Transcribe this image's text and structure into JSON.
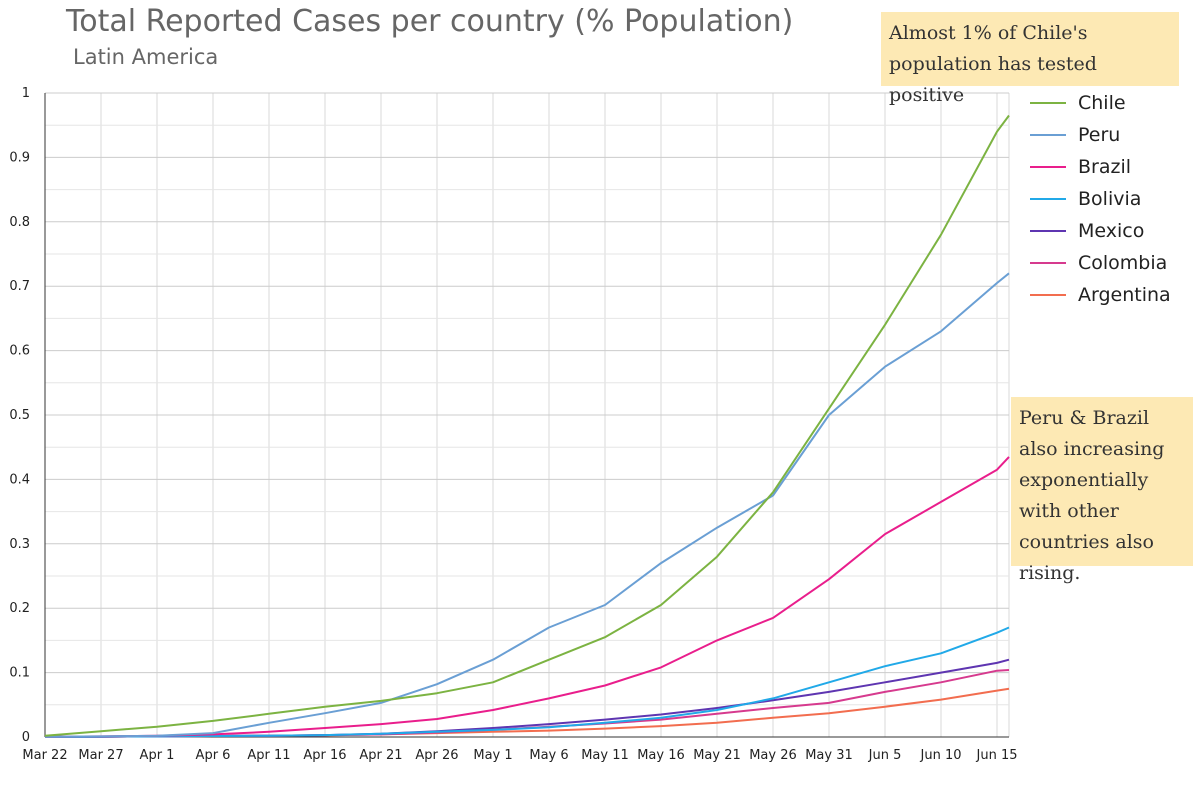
{
  "chart_data": {
    "type": "line",
    "title": "Total Reported Cases per country (% Population)",
    "subtitle": "Latin America",
    "xlabel": "",
    "ylabel": "",
    "ylim": [
      0,
      1
    ],
    "yticks": [
      "0",
      "0.1",
      "0.2",
      "0.3",
      "0.4",
      "0.5",
      "0.6",
      "0.7",
      "0.8",
      "0.9",
      "1"
    ],
    "xticks": [
      "Mar 22",
      "Mar 27",
      "Apr 1",
      "Apr 6",
      "Apr 11",
      "Apr 16",
      "Apr 21",
      "Apr 26",
      "May 1",
      "May 6",
      "May 11",
      "May 16",
      "May 21",
      "May 26",
      "May 31",
      "Jun 5",
      "Jun 10",
      "Jun 15"
    ],
    "grid": true,
    "legend_position": "right",
    "x": [
      "Mar 22",
      "Mar 27",
      "Apr 1",
      "Apr 6",
      "Apr 11",
      "Apr 16",
      "Apr 21",
      "Apr 26",
      "May 1",
      "May 6",
      "May 11",
      "May 16",
      "May 21",
      "May 26",
      "May 31",
      "Jun 5",
      "Jun 10",
      "Jun 15",
      "Jun 16"
    ],
    "series": [
      {
        "name": "Chile",
        "color": "#7cb342",
        "values": [
          0.002,
          0.009,
          0.016,
          0.025,
          0.036,
          0.047,
          0.056,
          0.068,
          0.085,
          0.12,
          0.155,
          0.205,
          0.28,
          0.38,
          0.51,
          0.64,
          0.78,
          0.94,
          0.965
        ]
      },
      {
        "name": "Peru",
        "color": "#6a9fd4",
        "values": [
          0.0005,
          0.001,
          0.002,
          0.006,
          0.022,
          0.037,
          0.053,
          0.082,
          0.12,
          0.17,
          0.205,
          0.27,
          0.325,
          0.375,
          0.5,
          0.575,
          0.63,
          0.705,
          0.72
        ]
      },
      {
        "name": "Brazil",
        "color": "#e91e8c",
        "values": [
          0.0005,
          0.001,
          0.002,
          0.004,
          0.008,
          0.014,
          0.02,
          0.028,
          0.042,
          0.06,
          0.08,
          0.108,
          0.15,
          0.185,
          0.245,
          0.315,
          0.365,
          0.415,
          0.435
        ]
      },
      {
        "name": "Bolivia",
        "color": "#21a9e8",
        "values": [
          0.0002,
          0.0005,
          0.001,
          0.0015,
          0.002,
          0.003,
          0.005,
          0.008,
          0.011,
          0.015,
          0.022,
          0.03,
          0.042,
          0.06,
          0.085,
          0.11,
          0.13,
          0.162,
          0.17
        ]
      },
      {
        "name": "Mexico",
        "color": "#5e35b1",
        "values": [
          0.0002,
          0.0005,
          0.001,
          0.0015,
          0.002,
          0.003,
          0.005,
          0.009,
          0.014,
          0.02,
          0.027,
          0.035,
          0.045,
          0.057,
          0.07,
          0.085,
          0.1,
          0.115,
          0.12
        ]
      },
      {
        "name": "Colombia",
        "color": "#d63a8e",
        "values": [
          0.0002,
          0.0005,
          0.001,
          0.0015,
          0.002,
          0.003,
          0.004,
          0.007,
          0.011,
          0.016,
          0.021,
          0.027,
          0.036,
          0.045,
          0.053,
          0.07,
          0.085,
          0.103,
          0.104
        ]
      },
      {
        "name": "Argentina",
        "color": "#f26d4f",
        "values": [
          0.0002,
          0.0005,
          0.001,
          0.0015,
          0.002,
          0.0025,
          0.004,
          0.006,
          0.008,
          0.01,
          0.013,
          0.017,
          0.022,
          0.03,
          0.037,
          0.047,
          0.058,
          0.072,
          0.075
        ]
      }
    ],
    "annotations": [
      "Almost 1% of Chile's population has tested positive",
      "Peru & Brazil also increasing exponentially with other countries also rising."
    ]
  }
}
